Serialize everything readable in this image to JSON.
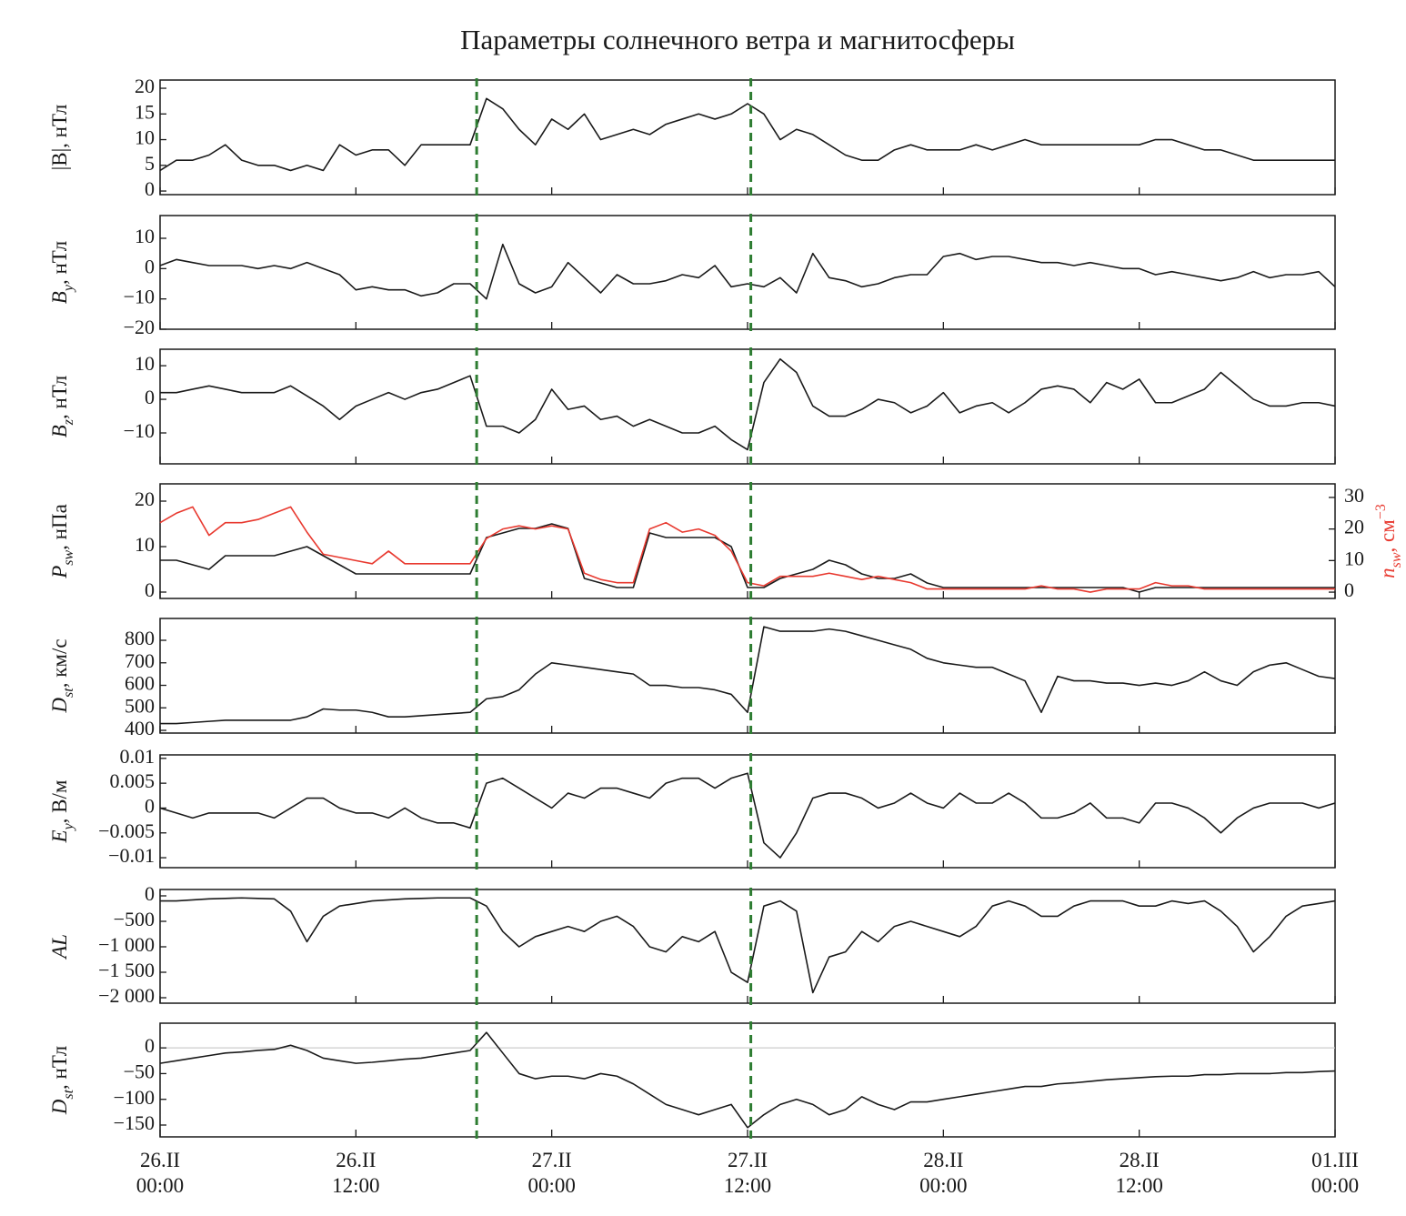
{
  "chart_data": {
    "type": "line",
    "title": "Параметры солнечного ветра и магнитосферы",
    "x": [
      0,
      1,
      2,
      3,
      4,
      5,
      6,
      7,
      8,
      9,
      10,
      11,
      12,
      13,
      14,
      15,
      16,
      17,
      18,
      19,
      20,
      21,
      22,
      23,
      24,
      25,
      26,
      27,
      28,
      29,
      30,
      31,
      32,
      33,
      34,
      35,
      36,
      37,
      38,
      39,
      40,
      41,
      42,
      43,
      44,
      45,
      46,
      47,
      48,
      49,
      50,
      51,
      52,
      53,
      54,
      55,
      56,
      57,
      58,
      59,
      60,
      61,
      62,
      63,
      64,
      65,
      66,
      67,
      68,
      69,
      70,
      71,
      72
    ],
    "xlim": [
      0,
      72
    ],
    "xticks": [
      {
        "value": 0,
        "label": "26.II\n00:00"
      },
      {
        "value": 12,
        "label": "26.II\n12:00"
      },
      {
        "value": 24,
        "label": "27.II\n00:00"
      },
      {
        "value": 36,
        "label": "27.II\n12:00"
      },
      {
        "value": 48,
        "label": "28.II\n00:00"
      },
      {
        "value": 60,
        "label": "28.II\n12:00"
      },
      {
        "value": 72,
        "label": "01.III\n00:00"
      }
    ],
    "vlines": [
      19.4,
      36.2
    ],
    "vline_color": "#2e7d32",
    "panels": [
      {
        "ylabel": {
          "symbol": "|B|",
          "italic": false,
          "unit": ", нТл"
        },
        "ylim": [
          -0.7,
          21.6
        ],
        "yticks": [
          0,
          5,
          10,
          15,
          20
        ],
        "series": [
          {
            "color": "#1a1a1a",
            "values": [
              4,
              6,
              6,
              7,
              9,
              6,
              5,
              5,
              4,
              5,
              4,
              9,
              7,
              8,
              8,
              5,
              9,
              9,
              9,
              9,
              18,
              16,
              12,
              9,
              14,
              12,
              15,
              10,
              11,
              12,
              11,
              13,
              14,
              15,
              14,
              15,
              17,
              15,
              10,
              12,
              11,
              9,
              7,
              6,
              6,
              8,
              9,
              8,
              8,
              8,
              9,
              8,
              9,
              10,
              9,
              9,
              9,
              9,
              9,
              9,
              9,
              10,
              10,
              9,
              8,
              8,
              7,
              6,
              6,
              6,
              6,
              6,
              6
            ]
          }
        ]
      },
      {
        "ylabel": {
          "symbol": "B",
          "sub": "y",
          "italic": true,
          "unit": ", нТл"
        },
        "ylim": [
          -20,
          17.5
        ],
        "yticks": [
          10,
          0,
          {
            "value": -10,
            "label": "−10"
          },
          {
            "value": -20,
            "label": "−20"
          }
        ],
        "series": [
          {
            "color": "#1a1a1a",
            "values": [
              1,
              3,
              2,
              1,
              1,
              1,
              0,
              1,
              0,
              2,
              0,
              -2,
              -7,
              -6,
              -7,
              -7,
              -9,
              -8,
              -5,
              -5,
              -10,
              8,
              -5,
              -8,
              -6,
              2,
              -3,
              -8,
              -2,
              -5,
              -5,
              -4,
              -2,
              -3,
              1,
              -6,
              -5,
              -6,
              -3,
              -8,
              5,
              -3,
              -4,
              -6,
              -5,
              -3,
              -2,
              -2,
              4,
              5,
              3,
              4,
              4,
              3,
              2,
              2,
              1,
              2,
              1,
              0,
              0,
              -2,
              -1,
              -2,
              -3,
              -4,
              -3,
              -1,
              -3,
              -2,
              -2,
              -1,
              -6
            ]
          }
        ]
      },
      {
        "ylabel": {
          "symbol": "B",
          "sub": "z",
          "italic": true,
          "unit": ", нТл"
        },
        "ylim": [
          -19.2,
          14.9
        ],
        "yticks": [
          10,
          0,
          {
            "value": -10,
            "label": "−10"
          }
        ],
        "series": [
          {
            "color": "#1a1a1a",
            "values": [
              2,
              2,
              3,
              4,
              3,
              2,
              2,
              2,
              4,
              1,
              -2,
              -6,
              -2,
              0,
              2,
              0,
              2,
              3,
              5,
              7,
              -8,
              -8,
              -10,
              -6,
              3,
              -3,
              -2,
              -6,
              -5,
              -8,
              -6,
              -8,
              -10,
              -10,
              -8,
              -12,
              -15,
              5,
              12,
              8,
              -2,
              -5,
              -5,
              -3,
              0,
              -1,
              -4,
              -2,
              2,
              -4,
              -2,
              -1,
              -4,
              -1,
              3,
              4,
              3,
              -1,
              5,
              3,
              6,
              -1,
              -1,
              1,
              3,
              8,
              4,
              0,
              -2,
              -2,
              -1,
              -1,
              -2
            ]
          }
        ]
      },
      {
        "ylabel": {
          "symbol": "P",
          "sub": "sw",
          "italic": true,
          "unit": ", нПа"
        },
        "ylim": [
          -1.4,
          23.8
        ],
        "yticks": [
          0,
          10,
          20
        ],
        "y2label": {
          "symbol": "n",
          "sub": "sw",
          "italic": true,
          "unit": ", см",
          "sup": "−3"
        },
        "y2lim": [
          -2,
          34.3
        ],
        "y2ticks": [
          0,
          10,
          20,
          30
        ],
        "y2color": "#e8392f",
        "series": [
          {
            "color": "#1a1a1a",
            "values": [
              7,
              7,
              6,
              5,
              8,
              8,
              8,
              8,
              9,
              10,
              8,
              6,
              4,
              4,
              4,
              4,
              4,
              4,
              4,
              4,
              12,
              13,
              14,
              14,
              15,
              14,
              3,
              2,
              1,
              1,
              13,
              12,
              12,
              12,
              12,
              10,
              1,
              1,
              3,
              4,
              5,
              7,
              6,
              4,
              3,
              3,
              4,
              2,
              1,
              1,
              1,
              1,
              1,
              1,
              1,
              1,
              1,
              1,
              1,
              1,
              0,
              1,
              1,
              1,
              1,
              1,
              1,
              1,
              1,
              1,
              1,
              1,
              1
            ]
          },
          {
            "color": "#e8392f",
            "axis": "y2",
            "values": [
              22,
              25,
              27,
              18,
              22,
              22,
              23,
              25,
              27,
              19,
              12,
              11,
              10,
              9,
              13,
              9,
              9,
              9,
              9,
              9,
              17,
              20,
              21,
              20,
              21,
              20,
              6,
              4,
              3,
              3,
              20,
              22,
              19,
              20,
              18,
              13,
              3,
              2,
              5,
              5,
              5,
              6,
              5,
              4,
              5,
              4,
              3,
              1,
              1,
              1,
              1,
              1,
              1,
              1,
              2,
              1,
              1,
              0,
              1,
              1,
              1,
              3,
              2,
              2,
              1,
              1,
              1,
              1,
              1,
              1,
              1,
              1,
              1
            ]
          }
        ]
      },
      {
        "ylabel": {
          "symbol": "D",
          "sub": "st",
          "italic": true,
          "unit": ", км/с"
        },
        "ylim": [
          388,
          897
        ],
        "yticks": [
          400,
          500,
          600,
          700,
          800
        ],
        "series": [
          {
            "color": "#1a1a1a",
            "values": [
              430,
              430,
              435,
              440,
              445,
              445,
              445,
              445,
              445,
              460,
              495,
              490,
              490,
              480,
              460,
              460,
              465,
              470,
              475,
              480,
              540,
              550,
              580,
              650,
              700,
              690,
              680,
              670,
              660,
              650,
              600,
              600,
              590,
              590,
              580,
              560,
              480,
              860,
              840,
              840,
              840,
              850,
              840,
              820,
              800,
              780,
              760,
              720,
              700,
              690,
              680,
              680,
              650,
              620,
              480,
              640,
              620,
              620,
              610,
              610,
              600,
              610,
              600,
              620,
              660,
              620,
              600,
              660,
              690,
              700,
              670,
              640,
              630
            ]
          }
        ]
      },
      {
        "ylabel": {
          "symbol": "E",
          "sub": "y",
          "italic": true,
          "unit": ", В/м"
        },
        "ylim": [
          -0.012,
          0.0107
        ],
        "yticks": [
          0.01,
          0.005,
          0,
          {
            "value": -0.005,
            "label": "−0.005"
          },
          {
            "value": -0.01,
            "label": "−0.01"
          }
        ],
        "series": [
          {
            "color": "#1a1a1a",
            "values": [
              0,
              -0.001,
              -0.002,
              -0.001,
              -0.001,
              -0.001,
              -0.001,
              -0.002,
              0,
              0.002,
              0.002,
              0,
              -0.001,
              -0.001,
              -0.002,
              0,
              -0.002,
              -0.003,
              -0.003,
              -0.004,
              0.005,
              0.006,
              0.004,
              0.002,
              0,
              0.003,
              0.002,
              0.004,
              0.004,
              0.003,
              0.002,
              0.005,
              0.006,
              0.006,
              0.004,
              0.006,
              0.007,
              -0.007,
              -0.01,
              -0.005,
              0.002,
              0.003,
              0.003,
              0.002,
              0,
              0.001,
              0.003,
              0.001,
              0,
              0.003,
              0.001,
              0.001,
              0.003,
              0.001,
              -0.002,
              -0.002,
              -0.001,
              0.001,
              -0.002,
              -0.002,
              -0.003,
              0.001,
              0.001,
              0,
              -0.002,
              -0.005,
              -0.002,
              0,
              0.001,
              0.001,
              0.001,
              0,
              0.001
            ]
          }
        ]
      },
      {
        "ylabel": {
          "symbol": "AL",
          "italic": true
        },
        "ylim": [
          -2107,
          125
        ],
        "yticks": [
          0,
          {
            "value": -500,
            "label": "−500"
          },
          {
            "value": -1000,
            "label": "−1 000"
          },
          {
            "value": -1500,
            "label": "−1 500"
          },
          {
            "value": -2000,
            "label": "−2 000"
          }
        ],
        "series": [
          {
            "color": "#1a1a1a",
            "values": [
              -100,
              -100,
              -80,
              -60,
              -50,
              -40,
              -50,
              -60,
              -300,
              -900,
              -400,
              -200,
              -150,
              -100,
              -80,
              -60,
              -50,
              -40,
              -40,
              -40,
              -200,
              -700,
              -1000,
              -800,
              -700,
              -600,
              -700,
              -500,
              -400,
              -600,
              -1000,
              -1100,
              -800,
              -900,
              -700,
              -1500,
              -1700,
              -200,
              -100,
              -300,
              -1900,
              -1200,
              -1100,
              -700,
              -900,
              -600,
              -500,
              -600,
              -700,
              -800,
              -600,
              -200,
              -100,
              -200,
              -400,
              -400,
              -200,
              -100,
              -100,
              -100,
              -200,
              -200,
              -100,
              -150,
              -100,
              -300,
              -600,
              -1100,
              -800,
              -400,
              -200,
              -150,
              -100
            ]
          }
        ]
      },
      {
        "ylabel": {
          "symbol": "D",
          "sub": "st",
          "italic": true,
          "unit": ", нТл"
        },
        "ylim": [
          -173,
          48
        ],
        "yticks": [
          0,
          {
            "value": -50,
            "label": "−50"
          },
          {
            "value": -100,
            "label": "−100"
          },
          {
            "value": -150,
            "label": "−150"
          }
        ],
        "zero_line": true,
        "series": [
          {
            "color": "#1a1a1a",
            "values": [
              -30,
              -25,
              -20,
              -15,
              -10,
              -8,
              -5,
              -3,
              5,
              -5,
              -20,
              -25,
              -30,
              -28,
              -25,
              -22,
              -20,
              -15,
              -10,
              -5,
              30,
              -10,
              -50,
              -60,
              -55,
              -55,
              -60,
              -50,
              -55,
              -70,
              -90,
              -110,
              -120,
              -130,
              -120,
              -110,
              -155,
              -130,
              -110,
              -100,
              -110,
              -130,
              -120,
              -95,
              -110,
              -120,
              -105,
              -105,
              -100,
              -95,
              -90,
              -85,
              -80,
              -75,
              -75,
              -70,
              -68,
              -65,
              -62,
              -60,
              -58,
              -56,
              -55,
              -55,
              -52,
              -52,
              -50,
              -50,
              -50,
              -48,
              -48,
              -46,
              -45
            ]
          }
        ]
      }
    ]
  }
}
